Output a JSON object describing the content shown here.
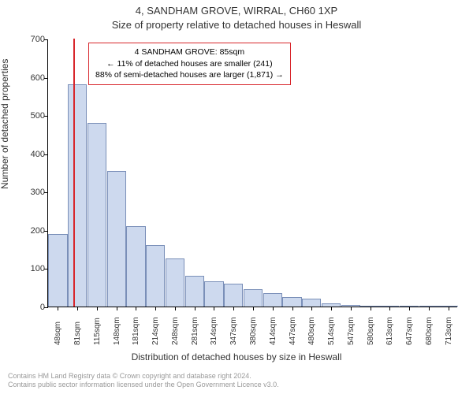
{
  "title_line1": "4, SANDHAM GROVE, WIRRAL, CH60 1XP",
  "title_line2": "Size of property relative to detached houses in Heswall",
  "ylabel": "Number of detached properties",
  "xlabel": "Distribution of detached houses by size in Heswall",
  "footer_line1": "Contains HM Land Registry data © Crown copyright and database right 2024.",
  "footer_line2": "Contains public sector information licensed under the Open Government Licence v3.0.",
  "chart": {
    "type": "bar",
    "ylim": [
      0,
      700
    ],
    "ytick_step": 100,
    "yticks": [
      0,
      100,
      200,
      300,
      400,
      500,
      600,
      700
    ],
    "categories": [
      "48sqm",
      "81sqm",
      "115sqm",
      "148sqm",
      "181sqm",
      "214sqm",
      "248sqm",
      "281sqm",
      "314sqm",
      "347sqm",
      "380sqm",
      "414sqm",
      "447sqm",
      "480sqm",
      "514sqm",
      "547sqm",
      "580sqm",
      "613sqm",
      "647sqm",
      "680sqm",
      "713sqm"
    ],
    "values": [
      190,
      580,
      480,
      355,
      210,
      160,
      125,
      80,
      65,
      60,
      45,
      35,
      25,
      20,
      8,
      5,
      3,
      2,
      1,
      1,
      0
    ],
    "bar_fill": "#cdd9ee",
    "bar_stroke": "#7a8fb8",
    "highlight_index": 1,
    "highlight_color": "#d8262c",
    "background": "#ffffff",
    "axis_color": "#000000",
    "tick_fontsize": 11,
    "xtick_fontsize": 10
  },
  "info_box": {
    "line1": "4 SANDHAM GROVE: 85sqm",
    "line2": "← 11% of detached houses are smaller (241)",
    "line3": "88% of semi-detached houses are larger (1,871) →",
    "border_color": "#d8262c",
    "background": "#ffffff",
    "fontsize": 10.5
  }
}
